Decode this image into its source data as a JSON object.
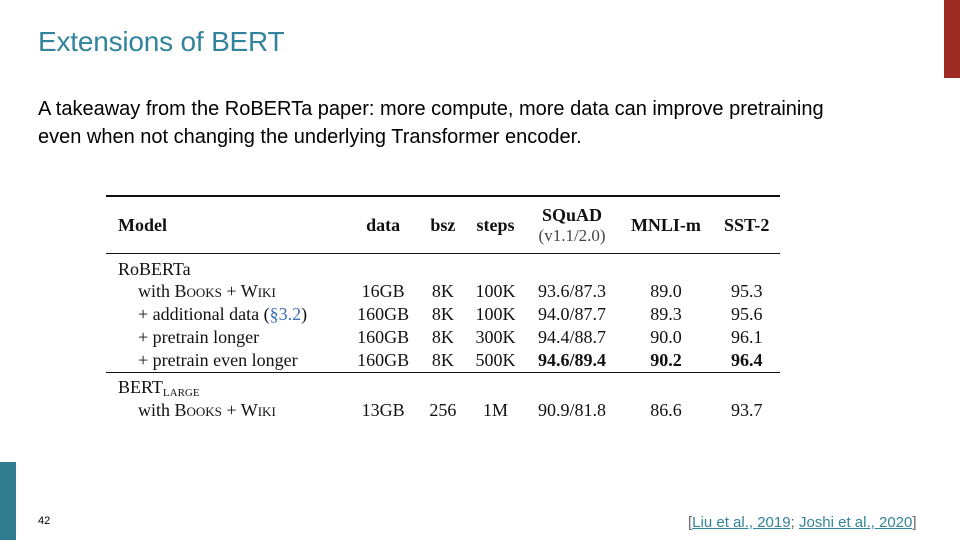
{
  "slide": {
    "title": "Extensions of BERT",
    "body_line1": "A takeaway from the RoBERTa paper: more compute, more data can improve pretraining",
    "body_line2": "even when not changing the underlying Transformer encoder.",
    "page_number": "42",
    "accent_colors": {
      "title": "#31849b",
      "top_bar": "#9e2a24",
      "left_bar": "#2f7d8f"
    }
  },
  "table": {
    "headers": {
      "model": "Model",
      "data": "data",
      "bsz": "bsz",
      "steps": "steps",
      "squad": "SQuAD",
      "squad_sub": "(v1.1/2.0)",
      "mnli": "MNLI-m",
      "sst": "SST-2"
    },
    "groups": {
      "roberta": "RoBERTa",
      "bert": "BERT",
      "bert_sub": "LARGE"
    },
    "rows": [
      {
        "model_pre": "with ",
        "model_sc": "Books + Wiki",
        "model_post": "",
        "data": "16GB",
        "bsz": "8K",
        "steps": "100K",
        "squad": "93.6/87.3",
        "mnli": "89.0",
        "sst": "95.3"
      },
      {
        "model_pre": "+ additional data (",
        "model_ref": "§3.2",
        "model_post": ")",
        "data": "160GB",
        "bsz": "8K",
        "steps": "100K",
        "squad": "94.0/87.7",
        "mnli": "89.3",
        "sst": "95.6"
      },
      {
        "model_pre": "+ pretrain longer",
        "data": "160GB",
        "bsz": "8K",
        "steps": "300K",
        "squad": "94.4/88.7",
        "mnli": "90.0",
        "sst": "96.1"
      },
      {
        "model_pre": "+ pretrain even longer",
        "data": "160GB",
        "bsz": "8K",
        "steps": "500K",
        "squad": "94.6/89.4",
        "mnli": "90.2",
        "sst": "96.4"
      },
      {
        "model_pre": "with ",
        "model_sc": "Books + Wiki",
        "data": "13GB",
        "bsz": "256",
        "steps": "1M",
        "squad": "90.9/81.8",
        "mnli": "86.6",
        "sst": "93.7"
      }
    ]
  },
  "citation": {
    "open": "[",
    "ref1": "Liu et al., 2019",
    "sep": "; ",
    "ref2": "Joshi et al., 2020",
    "close": "]"
  }
}
